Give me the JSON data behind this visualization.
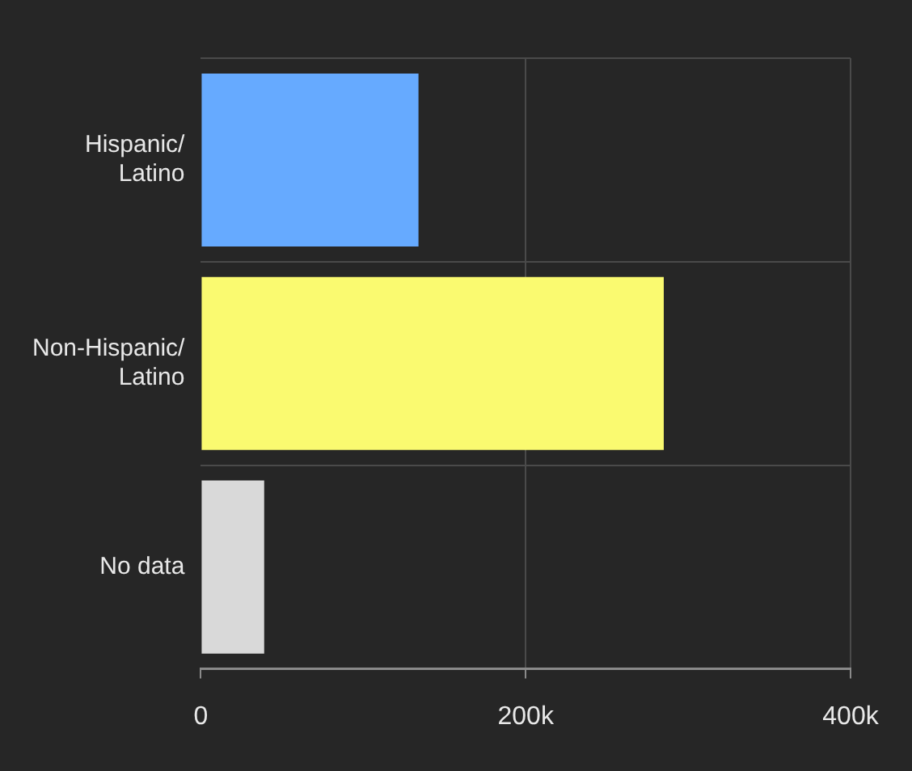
{
  "chart_data": {
    "type": "bar",
    "orientation": "horizontal",
    "categories": [
      "Hispanic/Latino",
      "Non-Hispanic/Latino",
      "No data"
    ],
    "values": [
      134000,
      285000,
      39000
    ],
    "colors": [
      "#66aaff",
      "#fafa70",
      "#d9d9d9"
    ],
    "xlim": [
      0,
      400000
    ],
    "xticks": [
      0,
      {
        "value": 200000,
        "label": "200k"
      },
      {
        "value": 400000,
        "label": "400k"
      }
    ],
    "grid": true
  }
}
